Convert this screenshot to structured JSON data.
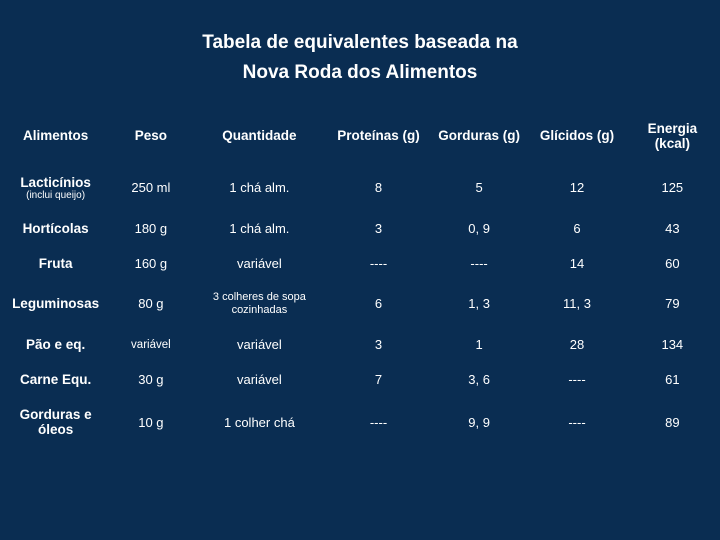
{
  "title": {
    "line1": "Tabela de equivalentes baseada na",
    "line2": "Nova Roda dos Alimentos"
  },
  "table": {
    "background_color": "#0a2d52",
    "text_color": "#ffffff",
    "columns": [
      {
        "label": "Alimentos"
      },
      {
        "label": "Peso"
      },
      {
        "label": "Quantidade"
      },
      {
        "label": "Proteínas (g)"
      },
      {
        "label": "Gorduras (g)"
      },
      {
        "label": "Glícidos (g)"
      },
      {
        "label": "Energia (kcal)"
      }
    ],
    "rows": [
      {
        "food": "Lacticínios",
        "food_note": "(inclui queijo)",
        "peso": "250 ml",
        "quantidade": "1 chá alm.",
        "qty_small": false,
        "proteinas": "8",
        "gorduras": "5",
        "glicidos": "12",
        "energia": "125"
      },
      {
        "food": "Hortícolas",
        "food_note": "",
        "peso": "180 g",
        "quantidade": "1 chá alm.",
        "qty_small": false,
        "proteinas": "3",
        "gorduras": "0, 9",
        "glicidos": "6",
        "energia": "43"
      },
      {
        "food": "Fruta",
        "food_note": "",
        "peso": "160 g",
        "quantidade": "variável",
        "qty_small": false,
        "proteinas": "----",
        "gorduras": "----",
        "glicidos": "14",
        "energia": "60"
      },
      {
        "food": "Leguminosas",
        "food_note": "",
        "peso": "80 g",
        "quantidade": "3 colheres de sopa cozinhadas",
        "qty_small": true,
        "proteinas": "6",
        "gorduras": "1, 3",
        "glicidos": "11, 3",
        "energia": "79"
      },
      {
        "food": "Pão e eq.",
        "food_note": "",
        "peso": "variável",
        "quantidade": "variável",
        "qty_small": false,
        "proteinas": "3",
        "gorduras": "1",
        "glicidos": "28",
        "energia": "134"
      },
      {
        "food": "Carne Equ.",
        "food_note": "",
        "peso": "30 g",
        "quantidade": "variável",
        "qty_small": false,
        "proteinas": "7",
        "gorduras": "3, 6",
        "glicidos": "----",
        "energia": "61"
      },
      {
        "food": "Gorduras e óleos",
        "food_note": "",
        "peso": "10 g",
        "quantidade": "1 colher chá",
        "qty_small": false,
        "proteinas": "----",
        "gorduras": "9, 9",
        "glicidos": "----",
        "energia": "89"
      }
    ]
  }
}
